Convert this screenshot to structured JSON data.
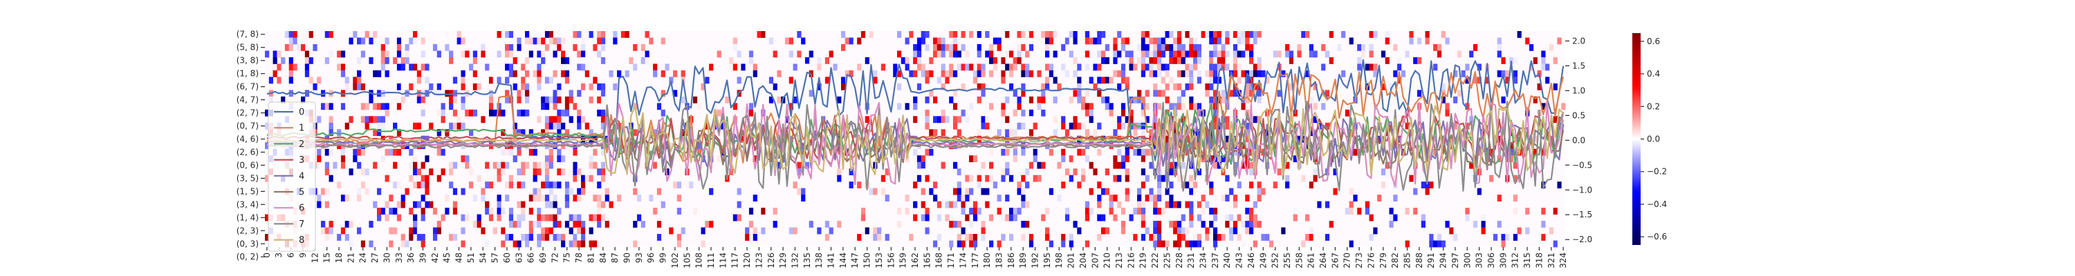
{
  "chart_data": {
    "type": "heatmap",
    "title": "",
    "xlabel": "",
    "ylabel": "",
    "x_ticks": [
      "0",
      "3",
      "6",
      "9",
      "12",
      "15",
      "18",
      "21",
      "24",
      "27",
      "30",
      "33",
      "36",
      "39",
      "42",
      "45",
      "48",
      "51",
      "54",
      "57",
      "60",
      "63",
      "66",
      "69",
      "72",
      "75",
      "78",
      "81",
      "84",
      "87",
      "90",
      "93",
      "96",
      "99",
      "102",
      "105",
      "108",
      "111",
      "114",
      "117",
      "120",
      "123",
      "126",
      "129",
      "132",
      "135",
      "138",
      "141",
      "144",
      "147",
      "150",
      "153",
      "156",
      "159",
      "162",
      "165",
      "168",
      "171",
      "174",
      "177",
      "180",
      "183",
      "186",
      "189",
      "192",
      "195",
      "198",
      "201",
      "204",
      "207",
      "210",
      "213",
      "216",
      "219",
      "222",
      "225",
      "228",
      "231",
      "234",
      "237",
      "240",
      "243",
      "246",
      "249",
      "252",
      "255",
      "258",
      "261",
      "264",
      "267",
      "270",
      "273",
      "276",
      "279",
      "282",
      "285",
      "288",
      "291",
      "294",
      "297",
      "300",
      "303",
      "306",
      "309",
      "312",
      "315",
      "318",
      "321",
      "324"
    ],
    "x_range": [
      0,
      325
    ],
    "y_ticks": [
      "(7, 8)",
      "(5, 8)",
      "(3, 8)",
      "(1, 8)",
      "(6, 7)",
      "(4, 7)",
      "(2, 7)",
      "(0, 7)",
      "(4, 6)",
      "(2, 6)",
      "(0, 6)",
      "(3, 5)",
      "(1, 5)",
      "(3, 4)",
      "(1, 4)",
      "(2, 3)",
      "(0, 3)",
      "(0, 2)"
    ],
    "heatmap_rows": 33,
    "colorbar": {
      "colormap": "seismic",
      "range": [
        -0.65,
        0.65
      ],
      "ticks": [
        "0.6",
        "0.4",
        "0.2",
        "0.0",
        "−0.2",
        "−0.4",
        "−0.6"
      ],
      "tick_values": [
        0.6,
        0.4,
        0.2,
        0.0,
        -0.2,
        -0.4,
        -0.6
      ]
    },
    "right_axis": {
      "ticks": [
        "2.0",
        "1.5",
        "1.0",
        "0.5",
        "0.0",
        "−0.5",
        "−1.0",
        "−1.5",
        "−2.0"
      ],
      "tick_values": [
        2.0,
        1.5,
        1.0,
        0.5,
        0.0,
        -0.5,
        -1.0,
        -1.5,
        -2.0
      ],
      "range": [
        -2.15,
        2.2
      ]
    },
    "legend": {
      "placement": "lower-left",
      "entries": [
        "0",
        "1",
        "2",
        "3",
        "4",
        "5",
        "6",
        "7",
        "8"
      ]
    },
    "series_colors": [
      "#4c72b0",
      "#dd8452",
      "#55a868",
      "#c44e52",
      "#8172b3",
      "#937860",
      "#da8bc3",
      "#8c8c8c",
      "#ccb974"
    ],
    "series_style": {
      "0": {
        "levels": [
          [
            0,
            0.95
          ],
          [
            58,
            1.12
          ],
          [
            62,
            0.05
          ],
          [
            88,
            0.98
          ],
          [
            165,
            1.02
          ],
          [
            216,
            0.03
          ],
          [
            238,
            1.08
          ],
          [
            325,
            1.08
          ]
        ],
        "burst_amp": 0.55
      },
      "1": {
        "levels": [
          [
            0,
            -0.02
          ],
          [
            58,
            0.88
          ],
          [
            62,
            0.12
          ],
          [
            88,
            0.05
          ],
          [
            216,
            0.85
          ],
          [
            220,
            0.15
          ],
          [
            238,
            0.9
          ],
          [
            325,
            0.95
          ]
        ],
        "burst_amp": 0.5
      },
      "2": {
        "levels": [
          [
            0,
            0.12
          ],
          [
            25,
            0.2
          ],
          [
            60,
            0.1
          ],
          [
            88,
            0.0
          ],
          [
            216,
            0.3
          ],
          [
            238,
            0.0
          ],
          [
            325,
            0.0
          ]
        ],
        "burst_amp": 0.5
      },
      "3": {
        "levels": [
          [
            0,
            0.05
          ],
          [
            325,
            0.0
          ]
        ],
        "burst_amp": 0.45
      },
      "4": {
        "levels": [
          [
            0,
            -0.05
          ],
          [
            325,
            -0.05
          ]
        ],
        "burst_amp": 0.5
      },
      "5": {
        "levels": [
          [
            0,
            -0.1
          ],
          [
            325,
            -0.1
          ]
        ],
        "burst_amp": 0.4
      },
      "6": {
        "levels": [
          [
            0,
            -0.08
          ],
          [
            325,
            -0.05
          ]
        ],
        "burst_amp": 0.85
      },
      "7": {
        "levels": [
          [
            0,
            -0.12
          ],
          [
            325,
            -0.15
          ]
        ],
        "burst_amp": 0.9
      },
      "8": {
        "levels": [
          [
            0,
            0.0
          ],
          [
            325,
            0.0
          ]
        ],
        "burst_amp": 0.7
      }
    },
    "burst_segments": [
      [
        85,
        160
      ],
      [
        222,
        325
      ]
    ]
  }
}
